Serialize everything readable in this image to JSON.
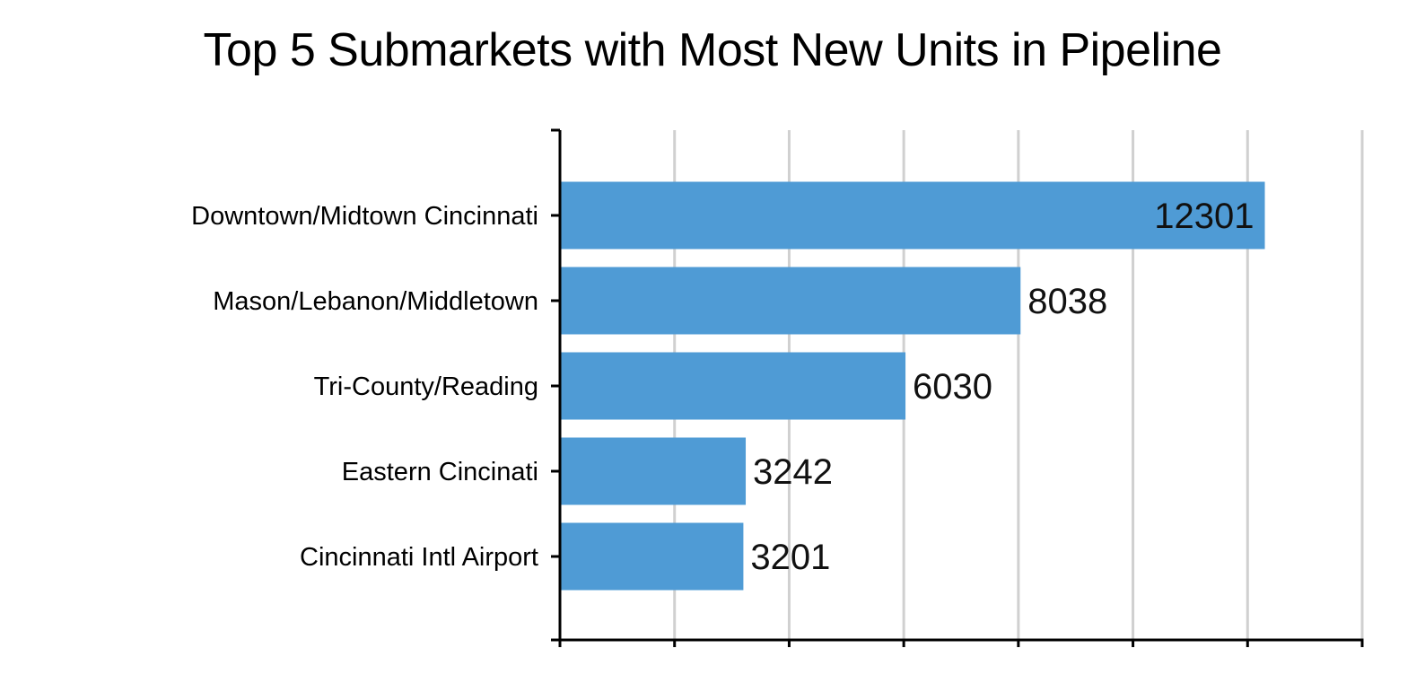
{
  "chart_data": {
    "type": "bar",
    "orientation": "horizontal",
    "title": "Top 5 Submarkets with Most New Units in Pipeline",
    "categories": [
      "Downtown/Midtown Cincinnati",
      "Mason/Lebanon/Middletown",
      "Tri-County/Reading",
      "Eastern Cincinati",
      "Cincinnati Intl Airport"
    ],
    "values": [
      12301,
      8038,
      6030,
      3242,
      3201
    ],
    "xlim": [
      0,
      14000
    ],
    "grid": true,
    "data_labels": true,
    "colors": {
      "bar": "#4f9bd5",
      "grid": "#d0d0d0",
      "axis": "#000000"
    }
  }
}
